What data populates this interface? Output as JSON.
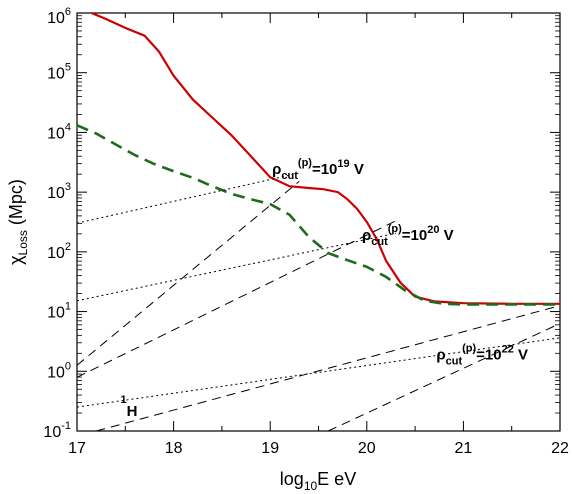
{
  "chart_data": {
    "type": "line",
    "title": "",
    "xlabel": {
      "pre": "log",
      "sub": "10",
      "post": "E eV"
    },
    "ylabel": {
      "pre": "χ",
      "sub": "Loss",
      "post": " (Mpc)"
    },
    "xlim": [
      17,
      22
    ],
    "ylim": [
      -1,
      6
    ],
    "y_scale": "log10",
    "x_ticks": [
      "17",
      "18",
      "19",
      "20",
      "21",
      "22"
    ],
    "y_ticks": [
      {
        "base": "10",
        "exp": "-1"
      },
      {
        "base": "10",
        "exp": "0"
      },
      {
        "base": "10",
        "exp": "1"
      },
      {
        "base": "10",
        "exp": "2"
      },
      {
        "base": "10",
        "exp": "3"
      },
      {
        "base": "10",
        "exp": "4"
      },
      {
        "base": "10",
        "exp": "5"
      },
      {
        "base": "10",
        "exp": "6"
      }
    ],
    "grid": false,
    "series": [
      {
        "style": "solid",
        "color": "#cc0000",
        "x": [
          17.15,
          17.3,
          17.5,
          17.7,
          17.85,
          18.0,
          18.2,
          18.4,
          18.6,
          18.8,
          19.0,
          19.2,
          19.4,
          19.55,
          19.7,
          19.8,
          19.9,
          20.0,
          20.1,
          20.2,
          20.35,
          20.5,
          20.7,
          21.0,
          21.5,
          22.0
        ],
        "log_y": [
          6.0,
          5.9,
          5.75,
          5.62,
          5.35,
          4.95,
          4.55,
          4.25,
          3.95,
          3.6,
          3.25,
          3.1,
          3.07,
          3.05,
          3.0,
          2.88,
          2.72,
          2.5,
          2.22,
          1.85,
          1.48,
          1.25,
          1.17,
          1.14,
          1.13,
          1.13
        ]
      },
      {
        "style": "dashed",
        "color": "#1e6b1e",
        "x": [
          17.0,
          17.2,
          17.4,
          17.6,
          17.8,
          18.0,
          18.2,
          18.4,
          18.6,
          18.8,
          19.0,
          19.2,
          19.4,
          19.6,
          19.8,
          20.0,
          20.2,
          20.4,
          20.6,
          20.8,
          21.0,
          21.3,
          21.6,
          22.0
        ],
        "log_y": [
          4.12,
          3.98,
          3.8,
          3.62,
          3.47,
          3.35,
          3.24,
          3.1,
          2.97,
          2.88,
          2.8,
          2.62,
          2.25,
          1.98,
          1.86,
          1.75,
          1.58,
          1.35,
          1.18,
          1.13,
          1.12,
          1.12,
          1.12,
          1.12
        ]
      },
      {
        "style": "dotted",
        "color": "#000000",
        "segments": [
          {
            "x": [
              17.0,
              19.3
            ],
            "log_y": [
              2.48,
              3.32
            ]
          },
          {
            "x": [
              17.0,
              20.3
            ],
            "log_y": [
              1.18,
              2.31
            ]
          },
          {
            "x": [
              17.0,
              22.0
            ],
            "log_y": [
              -0.6,
              0.56
            ]
          }
        ]
      },
      {
        "style": "long-dashed",
        "color": "#000000",
        "segments": [
          {
            "x": [
              17.0,
              19.3
            ],
            "log_y": [
              0.1,
              3.18
            ]
          },
          {
            "x": [
              17.0,
              20.3
            ],
            "log_y": [
              -0.1,
              2.52
            ]
          },
          {
            "x": [
              17.2,
              22.0
            ],
            "log_y": [
              -1.0,
              1.1
            ]
          },
          {
            "x": [
              19.6,
              22.0
            ],
            "log_y": [
              -1.0,
              0.8
            ]
          }
        ]
      }
    ],
    "annotations": [
      {
        "main": "ρ",
        "sub": "cut",
        "sup": "(p)",
        "rest": "=10",
        "exp": "19",
        "unit": " V",
        "x": 19.02,
        "log_y": 3.3
      },
      {
        "main": "ρ",
        "sub": "cut",
        "sup": "(p)",
        "rest": "=10",
        "exp": "20",
        "unit": " V",
        "x": 19.95,
        "log_y": 2.2
      },
      {
        "main": "ρ",
        "sub": "cut",
        "sup": "(p)",
        "rest": "=10",
        "exp": "22",
        "unit": " V",
        "x": 20.72,
        "log_y": 0.2
      },
      {
        "main": "",
        "sub": "",
        "sup": "1",
        "rest": "H",
        "exp": "",
        "unit": "",
        "x": 17.45,
        "log_y": -0.75
      }
    ]
  }
}
